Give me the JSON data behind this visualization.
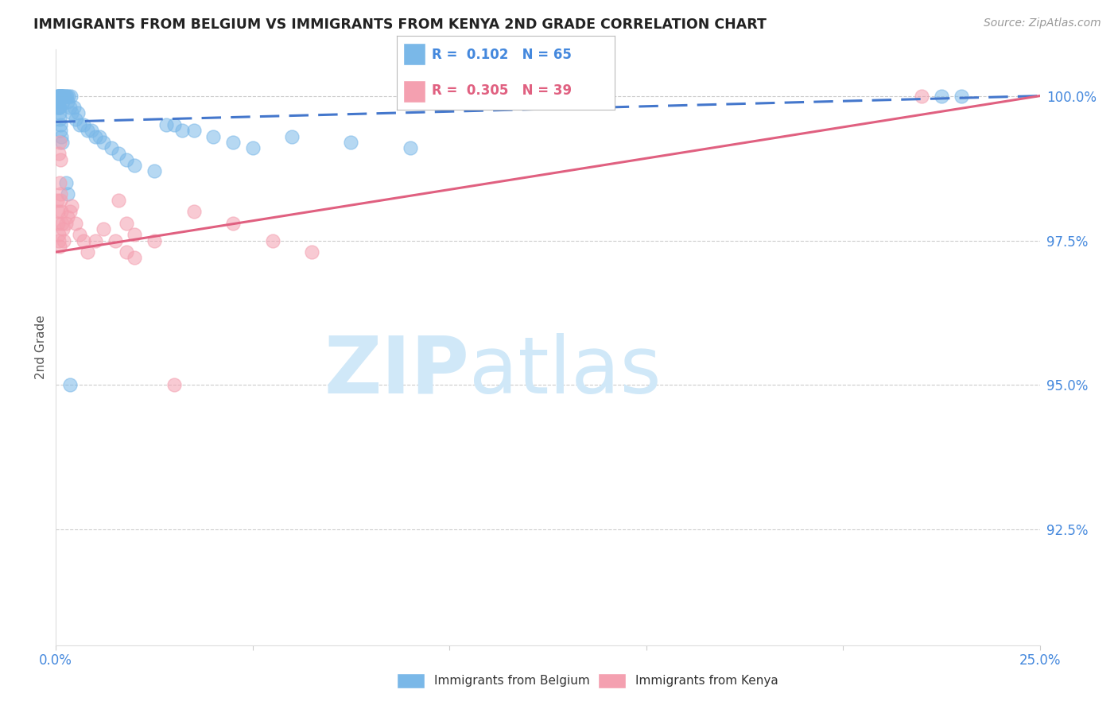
{
  "title": "IMMIGRANTS FROM BELGIUM VS IMMIGRANTS FROM KENYA 2ND GRADE CORRELATION CHART",
  "source": "Source: ZipAtlas.com",
  "ylabel": "2nd Grade",
  "xlim": [
    0.0,
    25.0
  ],
  "ylim": [
    90.5,
    100.8
  ],
  "belgium_R": 0.102,
  "belgium_N": 65,
  "kenya_R": 0.305,
  "kenya_N": 39,
  "belgium_color": "#7ab8e8",
  "kenya_color": "#f4a0b0",
  "belgium_line_color": "#4477cc",
  "kenya_line_color": "#e06080",
  "watermark_zip": "ZIP",
  "watermark_atlas": "atlas",
  "watermark_color": "#d0e8f8",
  "legend_label_belgium": "Immigrants from Belgium",
  "legend_label_kenya": "Immigrants from Kenya",
  "ytick_vals": [
    92.5,
    95.0,
    97.5,
    100.0
  ],
  "ytick_labels": [
    "92.5%",
    "95.0%",
    "97.5%",
    "100.0%"
  ],
  "bel_x": [
    0.04,
    0.05,
    0.06,
    0.07,
    0.08,
    0.09,
    0.1,
    0.1,
    0.11,
    0.12,
    0.13,
    0.14,
    0.15,
    0.16,
    0.17,
    0.18,
    0.2,
    0.22,
    0.25,
    0.28,
    0.3,
    0.32,
    0.35,
    0.38,
    0.4,
    0.45,
    0.5,
    0.55,
    0.6,
    0.7,
    0.8,
    0.9,
    1.0,
    1.1,
    1.2,
    1.4,
    1.6,
    1.8,
    2.0,
    2.5,
    3.0,
    3.5,
    4.0,
    4.5,
    5.0,
    0.05,
    0.06,
    0.07,
    0.08,
    0.09,
    0.1,
    0.11,
    0.12,
    0.14,
    0.16,
    2.8,
    3.2,
    6.0,
    7.5,
    9.0,
    0.26,
    0.3,
    0.35,
    22.5,
    23.0
  ],
  "bel_y": [
    100.0,
    100.0,
    100.0,
    100.0,
    100.0,
    100.0,
    100.0,
    99.8,
    100.0,
    100.0,
    100.0,
    100.0,
    100.0,
    100.0,
    100.0,
    99.9,
    100.0,
    100.0,
    100.0,
    100.0,
    99.9,
    100.0,
    99.8,
    100.0,
    99.7,
    99.8,
    99.6,
    99.7,
    99.5,
    99.5,
    99.4,
    99.4,
    99.3,
    99.3,
    99.2,
    99.1,
    99.0,
    98.9,
    98.8,
    98.7,
    99.5,
    99.4,
    99.3,
    99.2,
    99.1,
    99.9,
    99.8,
    99.8,
    99.8,
    99.7,
    99.6,
    99.5,
    99.4,
    99.3,
    99.2,
    99.5,
    99.4,
    99.3,
    99.2,
    99.1,
    98.5,
    98.3,
    95.0,
    100.0,
    100.0
  ],
  "ken_x": [
    0.04,
    0.05,
    0.06,
    0.07,
    0.08,
    0.09,
    0.1,
    0.11,
    0.12,
    0.14,
    0.16,
    0.18,
    0.2,
    0.25,
    0.3,
    0.35,
    0.4,
    0.5,
    0.6,
    0.7,
    0.8,
    1.0,
    1.2,
    1.5,
    1.8,
    2.0,
    2.5,
    1.6,
    1.8,
    2.0,
    0.08,
    0.1,
    0.12,
    3.5,
    4.5,
    5.5,
    6.5,
    3.0,
    22.0
  ],
  "ken_y": [
    98.2,
    98.0,
    97.8,
    97.6,
    97.5,
    97.4,
    98.5,
    98.3,
    98.2,
    98.0,
    97.8,
    97.7,
    97.5,
    97.8,
    97.9,
    98.0,
    98.1,
    97.8,
    97.6,
    97.5,
    97.3,
    97.5,
    97.7,
    97.5,
    97.3,
    97.2,
    97.5,
    98.2,
    97.8,
    97.6,
    99.0,
    99.2,
    98.9,
    98.0,
    97.8,
    97.5,
    97.3,
    95.0,
    100.0
  ],
  "bel_line_x": [
    0.0,
    25.0
  ],
  "bel_line_y": [
    99.55,
    100.0
  ],
  "ken_line_x": [
    0.0,
    25.0
  ],
  "ken_line_y": [
    97.3,
    100.0
  ]
}
